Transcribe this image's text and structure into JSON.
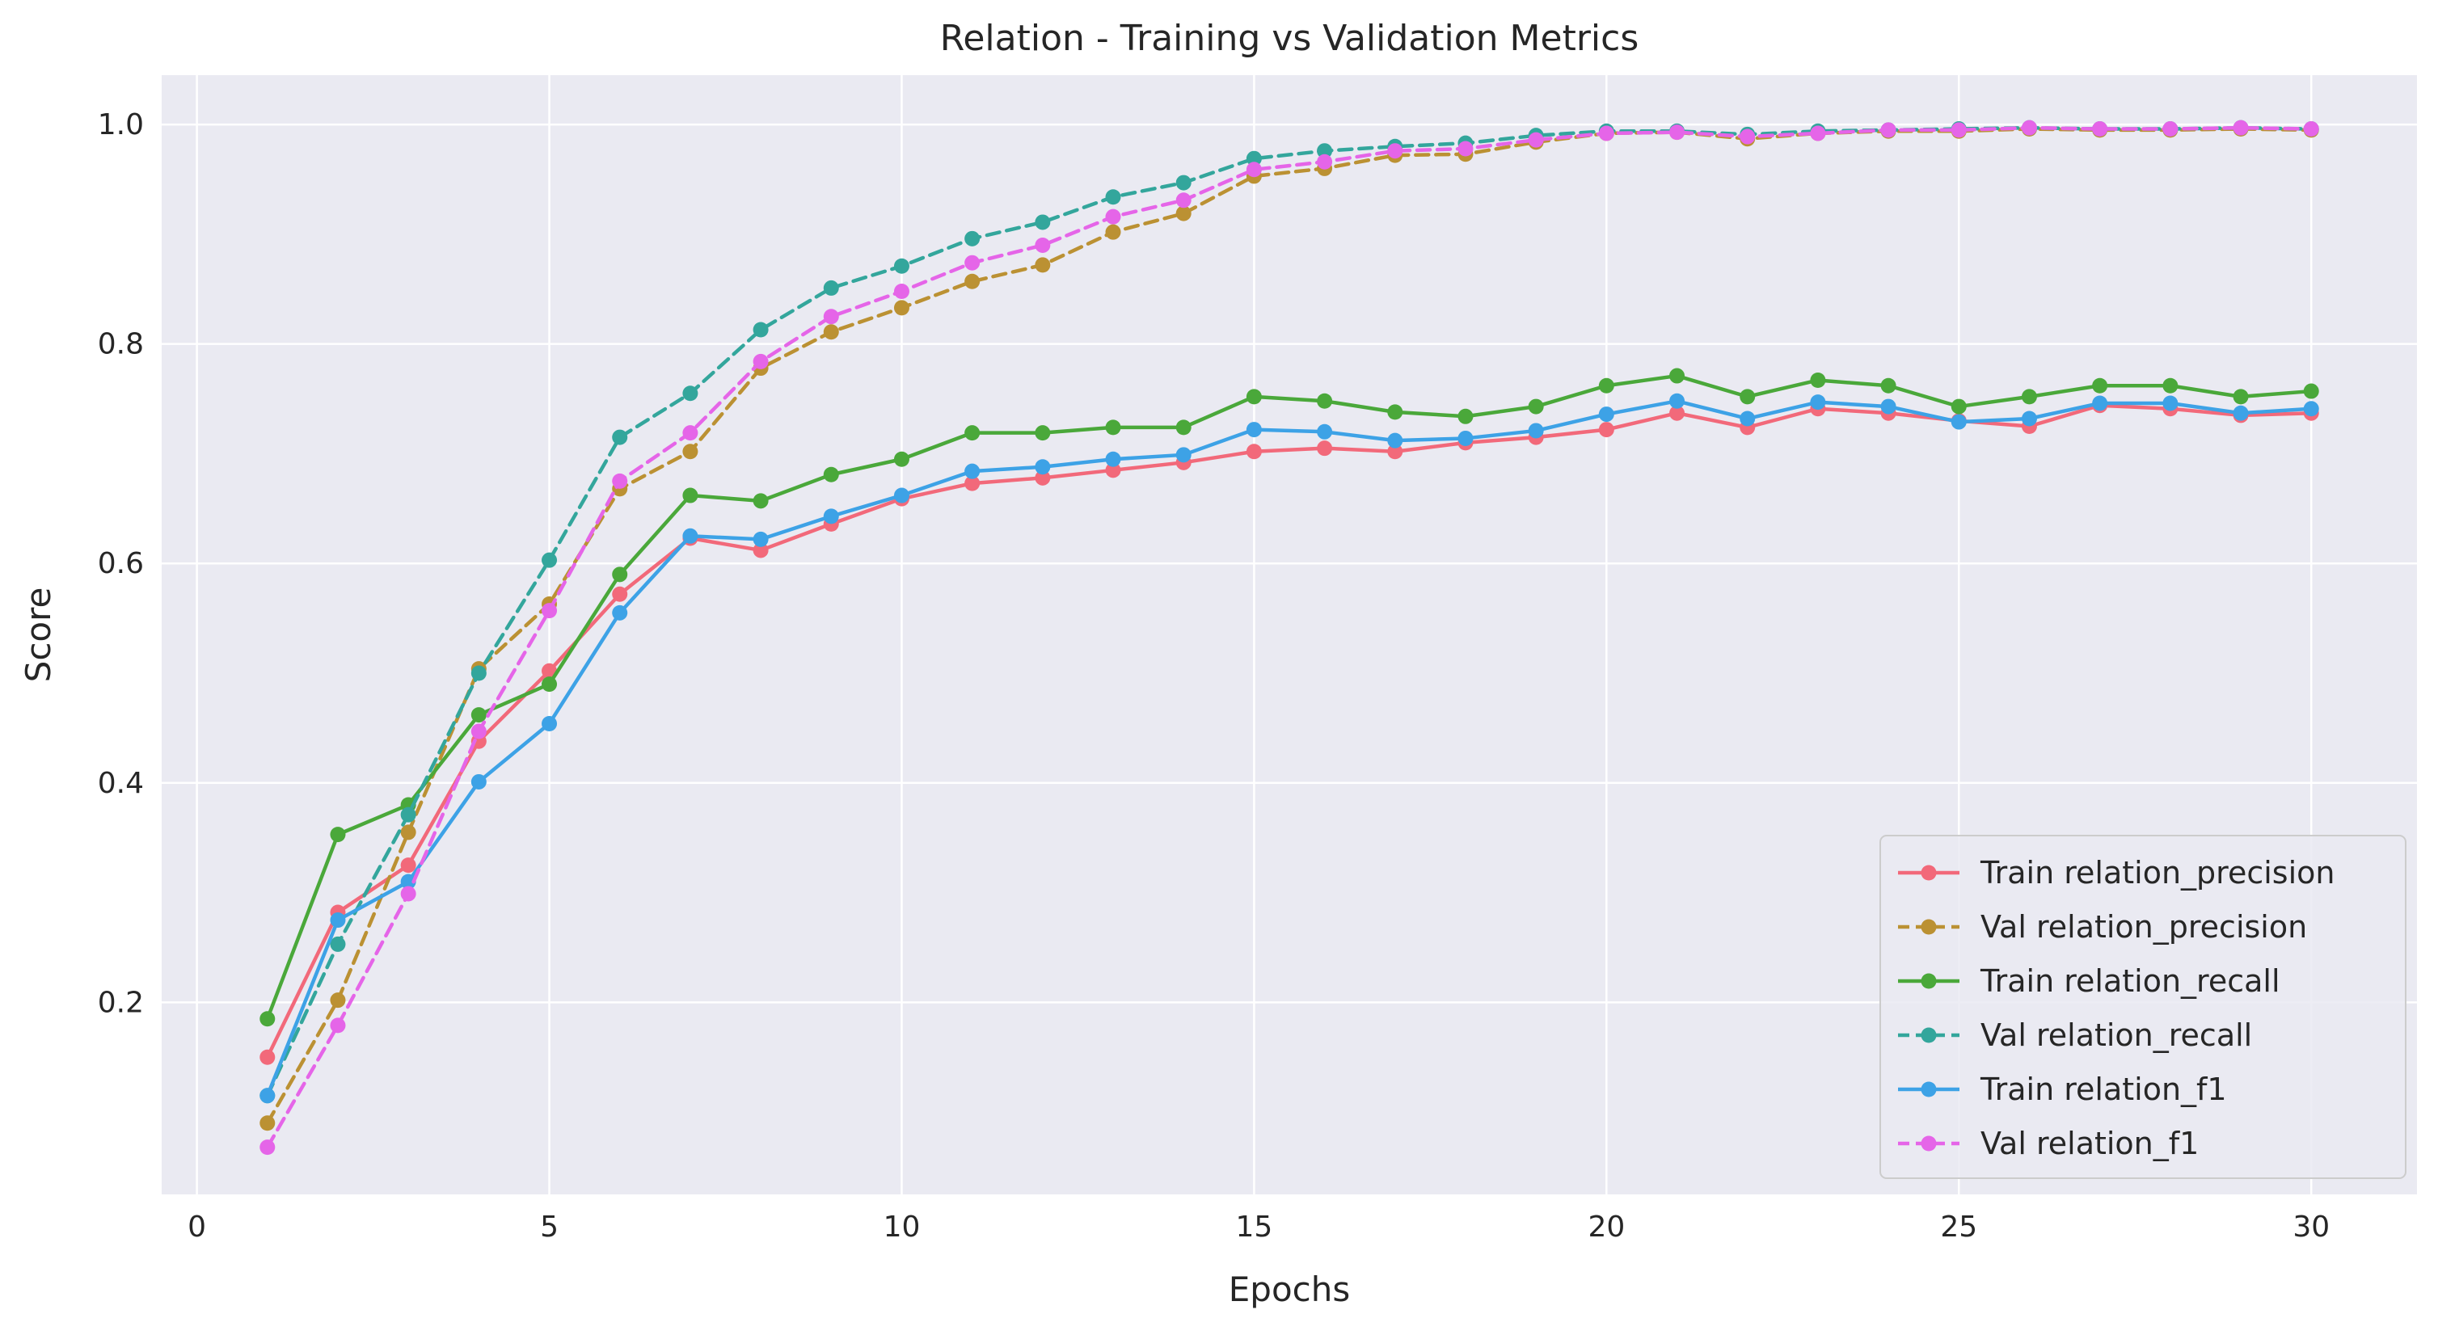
{
  "chart_data": {
    "type": "line",
    "title": "Relation - Training vs Validation Metrics",
    "xlabel": "Epochs",
    "ylabel": "Score",
    "xlim": [
      -0.5,
      31.5
    ],
    "ylim": [
      0.025,
      1.045
    ],
    "xticks": [
      0,
      5,
      10,
      15,
      20,
      25,
      30
    ],
    "yticks": [
      0.2,
      0.4,
      0.6,
      0.8,
      1.0
    ],
    "xtick_labels": [
      "0",
      "5",
      "10",
      "15",
      "20",
      "25",
      "30"
    ],
    "ytick_labels": [
      "0.2",
      "0.4",
      "0.6",
      "0.8",
      "1.0"
    ],
    "grid": true,
    "background": "#eaeaf2",
    "legend_position": "lower-right",
    "x": [
      1,
      2,
      3,
      4,
      5,
      6,
      7,
      8,
      9,
      10,
      11,
      12,
      13,
      14,
      15,
      16,
      17,
      18,
      19,
      20,
      21,
      22,
      23,
      24,
      25,
      26,
      27,
      28,
      29,
      30
    ],
    "series": [
      {
        "name": "Train relation_precision",
        "color": "#f2697a",
        "dashed": false,
        "values": [
          0.15,
          0.282,
          0.325,
          0.438,
          0.502,
          0.572,
          0.623,
          0.612,
          0.636,
          0.659,
          0.673,
          0.678,
          0.685,
          0.692,
          0.702,
          0.705,
          0.702,
          0.71,
          0.715,
          0.722,
          0.737,
          0.724,
          0.741,
          0.737,
          0.73,
          0.725,
          0.744,
          0.741,
          0.735,
          0.737
        ]
      },
      {
        "name": "Val relation_precision",
        "color": "#bb9133",
        "dashed": true,
        "values": [
          0.09,
          0.202,
          0.355,
          0.504,
          0.563,
          0.668,
          0.702,
          0.778,
          0.811,
          0.833,
          0.857,
          0.872,
          0.902,
          0.919,
          0.953,
          0.96,
          0.972,
          0.973,
          0.984,
          0.992,
          0.993,
          0.987,
          0.992,
          0.994,
          0.994,
          0.996,
          0.995,
          0.995,
          0.996,
          0.995
        ]
      },
      {
        "name": "Train relation_recall",
        "color": "#4aa83a",
        "dashed": false,
        "values": [
          0.185,
          0.353,
          0.38,
          0.462,
          0.49,
          0.59,
          0.662,
          0.657,
          0.681,
          0.695,
          0.719,
          0.719,
          0.724,
          0.724,
          0.752,
          0.748,
          0.738,
          0.734,
          0.743,
          0.762,
          0.771,
          0.752,
          0.767,
          0.762,
          0.743,
          0.752,
          0.762,
          0.762,
          0.752,
          0.757
        ]
      },
      {
        "name": "Val relation_recall",
        "color": "#33a69c",
        "dashed": true,
        "values": [
          0.115,
          0.253,
          0.371,
          0.5,
          0.603,
          0.715,
          0.755,
          0.813,
          0.851,
          0.871,
          0.896,
          0.911,
          0.934,
          0.947,
          0.969,
          0.976,
          0.98,
          0.983,
          0.99,
          0.994,
          0.994,
          0.991,
          0.994,
          0.995,
          0.996,
          0.997,
          0.996,
          0.996,
          0.997,
          0.996
        ]
      },
      {
        "name": "Train relation_f1",
        "color": "#3da2e6",
        "dashed": false,
        "values": [
          0.115,
          0.275,
          0.31,
          0.401,
          0.454,
          0.555,
          0.625,
          0.622,
          0.643,
          0.662,
          0.684,
          0.688,
          0.695,
          0.699,
          0.722,
          0.72,
          0.712,
          0.714,
          0.721,
          0.736,
          0.748,
          0.732,
          0.747,
          0.743,
          0.729,
          0.732,
          0.746,
          0.746,
          0.737,
          0.741
        ]
      },
      {
        "name": "Val relation_f1",
        "color": "#e565e8",
        "dashed": true,
        "values": [
          0.068,
          0.179,
          0.299,
          0.447,
          0.557,
          0.675,
          0.719,
          0.784,
          0.825,
          0.848,
          0.874,
          0.89,
          0.916,
          0.931,
          0.959,
          0.966,
          0.976,
          0.978,
          0.986,
          0.992,
          0.993,
          0.989,
          0.992,
          0.995,
          0.995,
          0.997,
          0.996,
          0.996,
          0.997,
          0.996
        ]
      }
    ]
  }
}
